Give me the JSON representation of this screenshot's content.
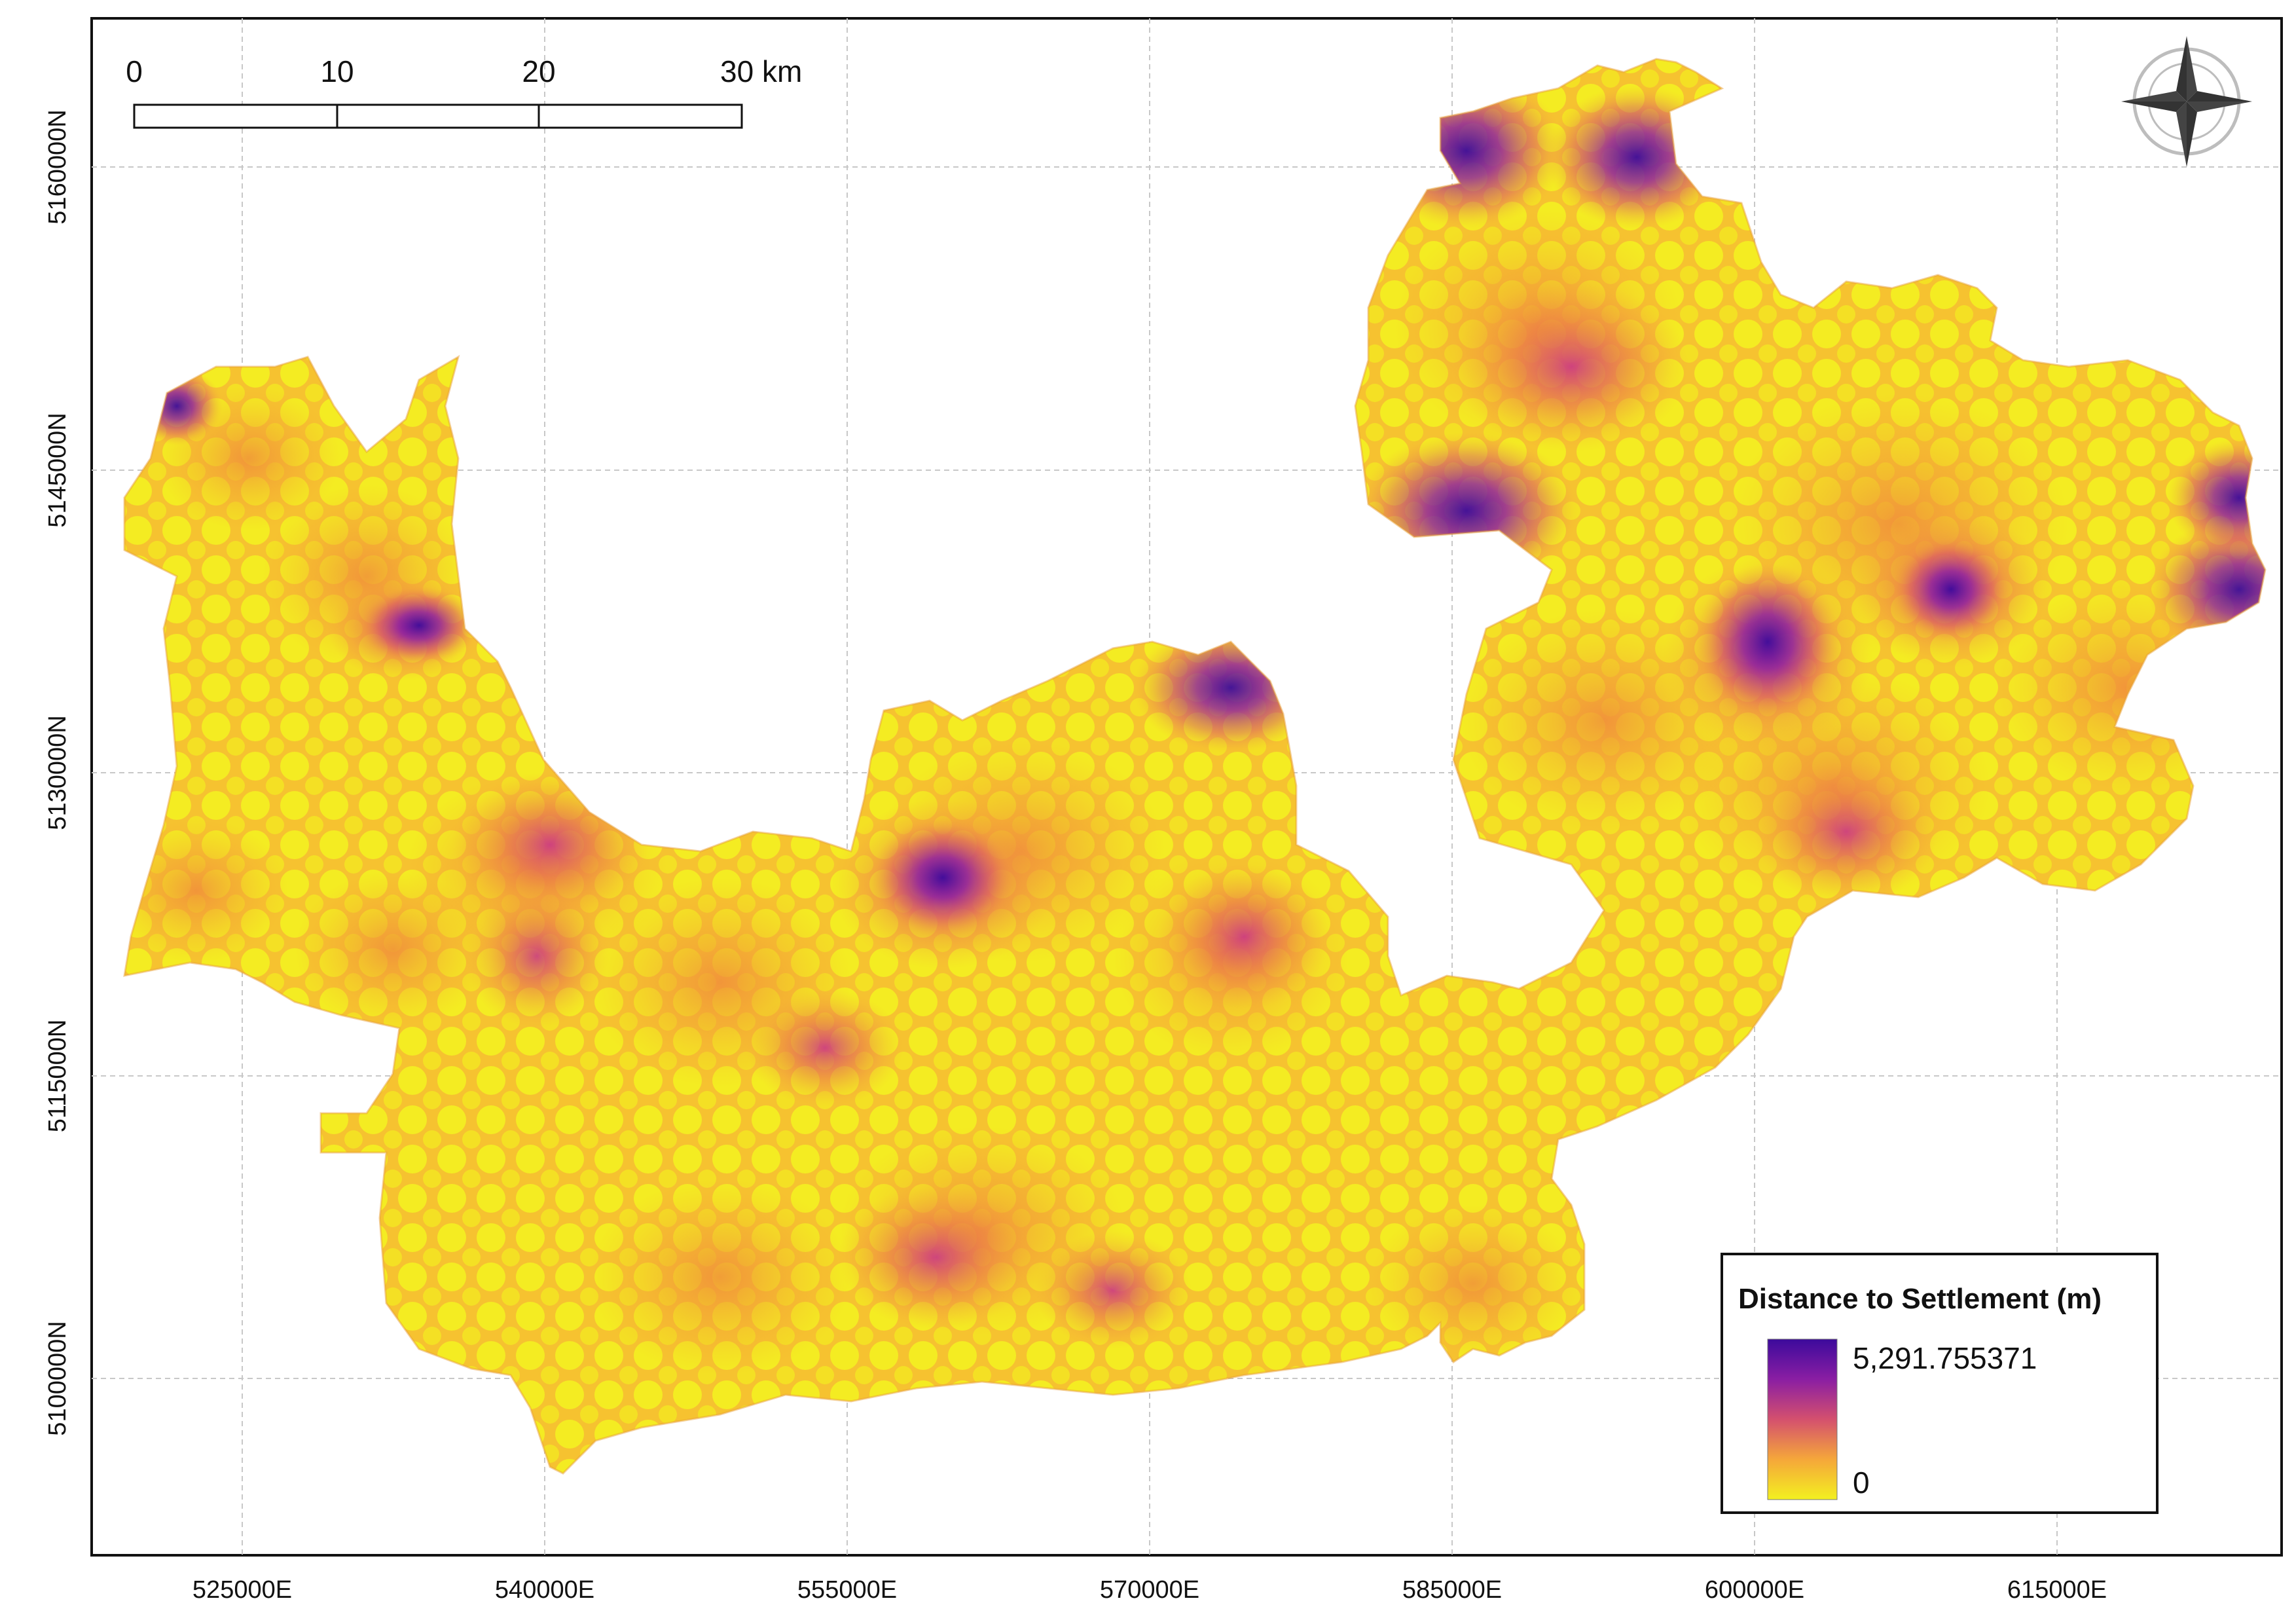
{
  "map": {
    "grid_lines": true,
    "x_ticks": [
      "525000E",
      "540000E",
      "555000E",
      "570000E",
      "585000E",
      "600000E",
      "615000E"
    ],
    "y_ticks": [
      "5160000N",
      "5145000N",
      "5130000N",
      "5115000N",
      "5100000N"
    ]
  },
  "scale_bar": {
    "labels": [
      "0",
      "10",
      "20",
      "30 km"
    ]
  },
  "north_arrow": {
    "icon": "compass-rose-icon"
  },
  "legend": {
    "title": "Distance to Settlement (m)",
    "max_label": "5,291.755371",
    "min_label": "0",
    "colors": {
      "low": "#f3f020",
      "low_mid": "#f5a73a",
      "mid": "#d4506e",
      "high_mid": "#8a1ea3",
      "high": "#3c0a9c"
    }
  },
  "colors": {
    "frame": "#111111",
    "grid": "#c8c8c8",
    "settlement_yellow": "#f3f020",
    "orange": "#f7a13a",
    "magenta": "#c8308a",
    "purple": "#4a0fa0"
  }
}
